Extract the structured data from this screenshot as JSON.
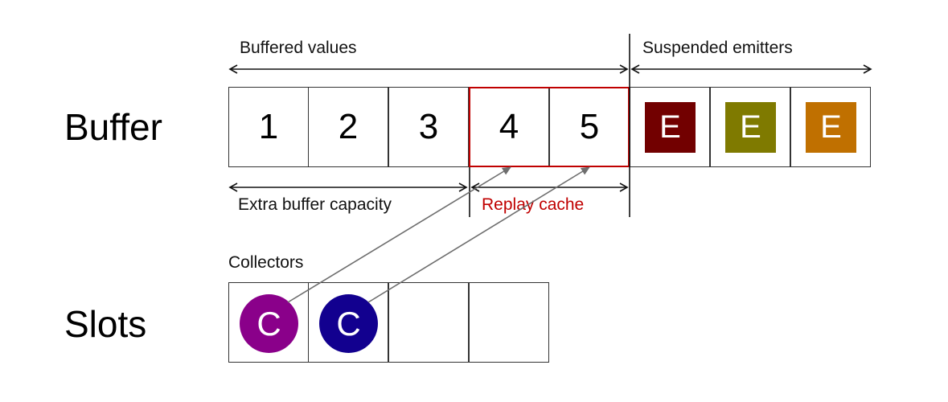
{
  "rows": {
    "buffer_label": "Buffer",
    "slots_label": "Slots"
  },
  "annotations": {
    "buffered_values": "Buffered values",
    "suspended_emitters": "Suspended emitters",
    "extra_buffer_capacity": "Extra buffer capacity",
    "replay_cache": "Replay cache",
    "collectors": "Collectors"
  },
  "buffer": {
    "values": [
      "1",
      "2",
      "3",
      "4",
      "5"
    ],
    "emitters": [
      {
        "label": "E",
        "color": "#720000"
      },
      {
        "label": "E",
        "color": "#7f7a00"
      },
      {
        "label": "E",
        "color": "#c07000"
      }
    ]
  },
  "slots": {
    "collectors": [
      {
        "label": "C",
        "color": "#8a008a"
      },
      {
        "label": "C",
        "color": "#12008f"
      }
    ],
    "empty_count": 2
  },
  "colors": {
    "replay_highlight": "#c00000",
    "arrow": "#6e6e6e"
  }
}
